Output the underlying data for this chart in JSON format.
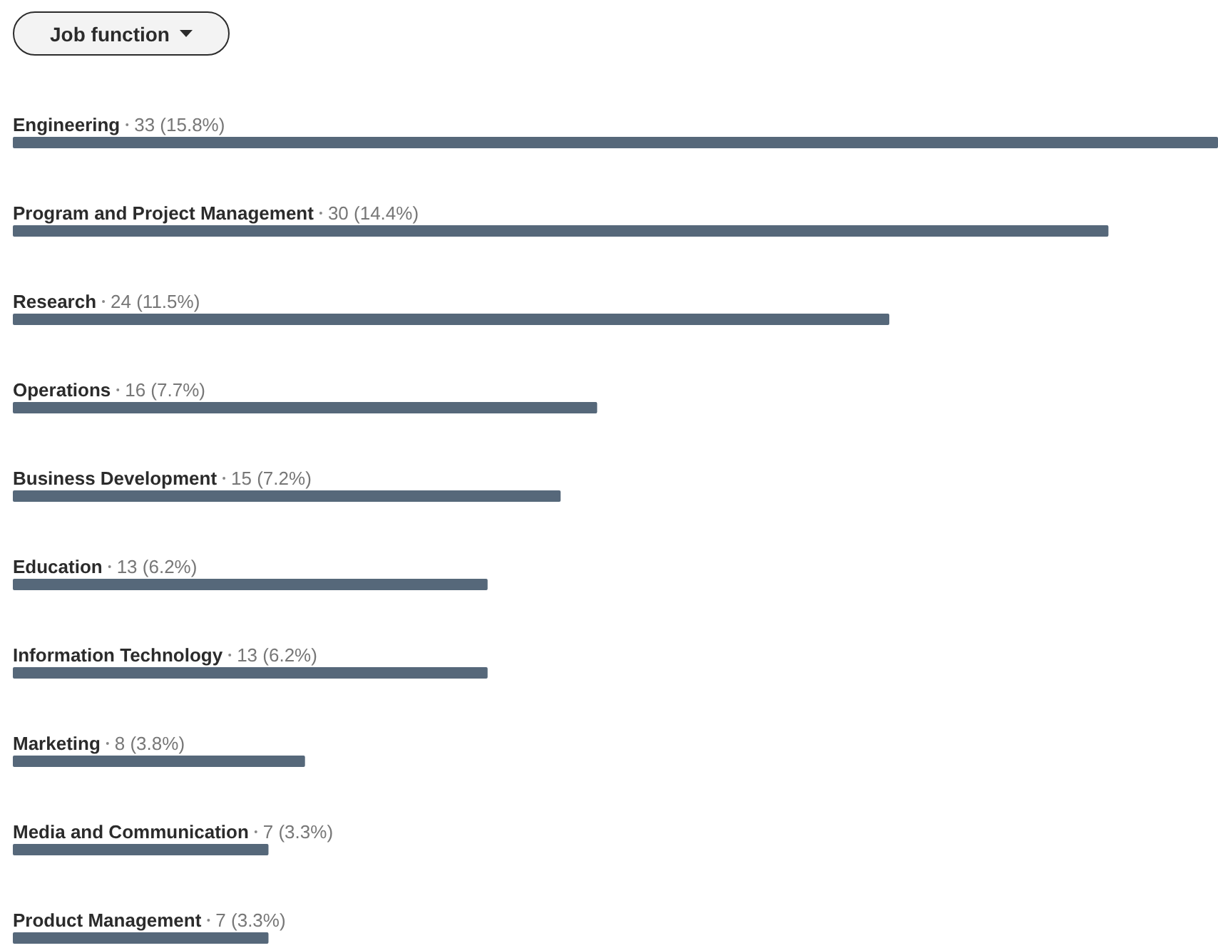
{
  "chart_data": {
    "type": "bar",
    "orientation": "horizontal",
    "title": "Job function",
    "categories": [
      "Engineering",
      "Program and Project Management",
      "Research",
      "Operations",
      "Business Development",
      "Education",
      "Information Technology",
      "Marketing",
      "Media and Communication",
      "Product Management"
    ],
    "values": [
      33,
      30,
      24,
      16,
      15,
      13,
      13,
      8,
      7,
      7
    ],
    "value_labels": [
      "33 (15.8%)",
      "30 (14.4%)",
      "24 (11.5%)",
      "16 (7.7%)",
      "15 (7.2%)",
      "13 (6.2%)",
      "13 (6.2%)",
      "8 (3.8%)",
      "7 (3.3%)",
      "7 (3.3%)"
    ],
    "color": "#56687a",
    "grid": false,
    "legend": false
  }
}
